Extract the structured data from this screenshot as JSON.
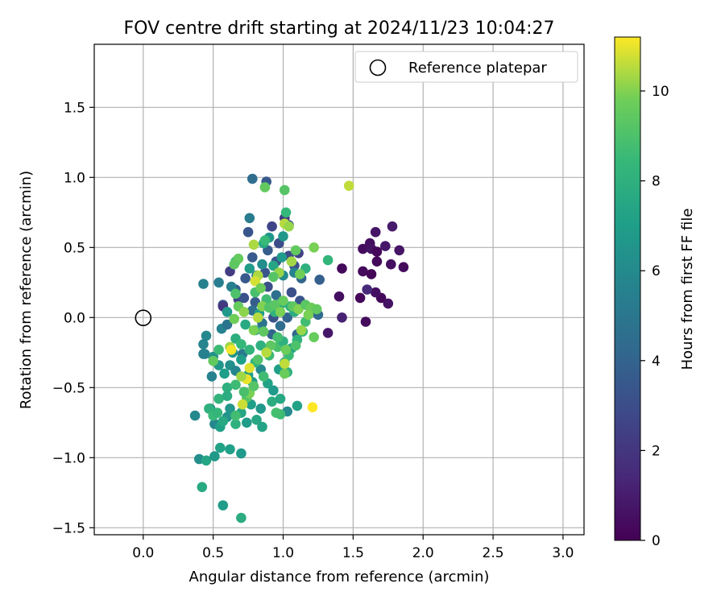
{
  "chart_data": {
    "type": "scatter",
    "title": "FOV centre drift starting at 2024/11/23 10:04:27",
    "xlabel": "Angular distance from reference (arcmin)",
    "ylabel": "Rotation from reference (arcmin)",
    "xlim": [
      -0.35,
      3.15
    ],
    "ylim": [
      -1.55,
      1.95
    ],
    "xticks": [
      0.0,
      0.5,
      1.0,
      1.5,
      2.0,
      2.5,
      3.0
    ],
    "xtick_labels": [
      "0.0",
      "0.5",
      "1.0",
      "1.5",
      "2.0",
      "2.5",
      "3.0"
    ],
    "yticks": [
      -1.5,
      -1.0,
      -0.5,
      0.0,
      0.5,
      1.0,
      1.5
    ],
    "ytick_labels": [
      "−1.5",
      "−1.0",
      "−0.5",
      "0.0",
      "0.5",
      "1.0",
      "1.5"
    ],
    "grid": true,
    "legend": {
      "position": "top-right",
      "entries": [
        "Reference platepar"
      ]
    },
    "reference_point": {
      "x": 0.0,
      "y": 0.0,
      "label": "Reference platepar"
    },
    "colorbar": {
      "label": "Hours from first FF file",
      "colormap": "viridis",
      "range": [
        0,
        11.2
      ],
      "ticks": [
        0,
        2,
        4,
        6,
        8,
        10
      ],
      "tick_labels": [
        "0",
        "2",
        "4",
        "6",
        "8",
        "10"
      ]
    },
    "points": [
      {
        "x": 1.42,
        "y": 0.35,
        "h": 0.3
      },
      {
        "x": 1.4,
        "y": 0.15,
        "h": 0.5
      },
      {
        "x": 1.42,
        "y": 0.0,
        "h": 1.2
      },
      {
        "x": 1.32,
        "y": -0.11,
        "h": 0.8
      },
      {
        "x": 1.55,
        "y": 0.14,
        "h": 0.2
      },
      {
        "x": 1.57,
        "y": 0.33,
        "h": 0.3
      },
      {
        "x": 1.57,
        "y": 0.49,
        "h": 0.4
      },
      {
        "x": 1.59,
        "y": -0.03,
        "h": 0.4
      },
      {
        "x": 1.62,
        "y": 0.53,
        "h": 0.5
      },
      {
        "x": 1.63,
        "y": 0.31,
        "h": 0.1
      },
      {
        "x": 1.63,
        "y": 0.49,
        "h": 0.6
      },
      {
        "x": 1.66,
        "y": 0.61,
        "h": 0.7
      },
      {
        "x": 1.67,
        "y": 0.4,
        "h": 0.3
      },
      {
        "x": 1.67,
        "y": 0.47,
        "h": 0.2
      },
      {
        "x": 1.7,
        "y": 0.14,
        "h": 0.2
      },
      {
        "x": 1.73,
        "y": 0.51,
        "h": 0.8
      },
      {
        "x": 1.75,
        "y": 0.1,
        "h": 0.6
      },
      {
        "x": 1.77,
        "y": 0.38,
        "h": 0.5
      },
      {
        "x": 1.78,
        "y": 0.65,
        "h": 0.9
      },
      {
        "x": 1.83,
        "y": 0.48,
        "h": 0.7
      },
      {
        "x": 1.86,
        "y": 0.36,
        "h": 0.4
      },
      {
        "x": 1.66,
        "y": 0.18,
        "h": 0.5
      },
      {
        "x": 1.6,
        "y": 0.2,
        "h": 1.5
      },
      {
        "x": 0.78,
        "y": 0.99,
        "h": 4.5
      },
      {
        "x": 0.88,
        "y": 0.97,
        "h": 3.5
      },
      {
        "x": 0.76,
        "y": 0.71,
        "h": 5.3
      },
      {
        "x": 0.75,
        "y": 0.61,
        "h": 3.4
      },
      {
        "x": 0.92,
        "y": 0.65,
        "h": 2.6
      },
      {
        "x": 0.97,
        "y": 0.53,
        "h": 3.0
      },
      {
        "x": 1.01,
        "y": 0.71,
        "h": 2.2
      },
      {
        "x": 1.04,
        "y": 0.66,
        "h": 3.0
      },
      {
        "x": 1.04,
        "y": 0.44,
        "h": 2.9
      },
      {
        "x": 1.08,
        "y": 0.37,
        "h": 3.1
      },
      {
        "x": 1.11,
        "y": 0.46,
        "h": 2.5
      },
      {
        "x": 0.95,
        "y": 0.4,
        "h": 3.3
      },
      {
        "x": 0.89,
        "y": 0.48,
        "h": 3.7
      },
      {
        "x": 0.87,
        "y": 0.32,
        "h": 3.3
      },
      {
        "x": 0.78,
        "y": 0.43,
        "h": 3.6
      },
      {
        "x": 0.73,
        "y": 0.28,
        "h": 3.5
      },
      {
        "x": 0.62,
        "y": 0.33,
        "h": 2.3
      },
      {
        "x": 0.66,
        "y": 0.2,
        "h": 3.8
      },
      {
        "x": 0.68,
        "y": 0.13,
        "h": 2.5
      },
      {
        "x": 0.57,
        "y": 0.09,
        "h": 3.4
      },
      {
        "x": 0.57,
        "y": 0.08,
        "h": 2.0
      },
      {
        "x": 0.72,
        "y": 0.14,
        "h": 3.2
      },
      {
        "x": 0.8,
        "y": 0.11,
        "h": 3.7
      },
      {
        "x": 0.78,
        "y": 0.05,
        "h": 4.6
      },
      {
        "x": 0.85,
        "y": -0.04,
        "h": 4.8
      },
      {
        "x": 0.93,
        "y": 0.0,
        "h": 3.2
      },
      {
        "x": 0.98,
        "y": -0.06,
        "h": 4.5
      },
      {
        "x": 1.03,
        "y": 0.0,
        "h": 4.0
      },
      {
        "x": 1.06,
        "y": 0.18,
        "h": 3.1
      },
      {
        "x": 1.12,
        "y": 0.12,
        "h": 3.3
      },
      {
        "x": 1.2,
        "y": 0.04,
        "h": 3.3
      },
      {
        "x": 1.26,
        "y": 0.27,
        "h": 3.8
      },
      {
        "x": 1.13,
        "y": 0.28,
        "h": 4.1
      },
      {
        "x": 1.25,
        "y": 0.02,
        "h": 4.3
      },
      {
        "x": 1.1,
        "y": -0.12,
        "h": 4.2
      },
      {
        "x": 0.92,
        "y": -0.12,
        "h": 4.0
      },
      {
        "x": 0.89,
        "y": 0.22,
        "h": 3.1
      },
      {
        "x": 0.95,
        "y": 0.16,
        "h": 4.6
      },
      {
        "x": 0.81,
        "y": 0.3,
        "h": 5.3
      },
      {
        "x": 0.76,
        "y": 0.35,
        "h": 6.9
      },
      {
        "x": 0.86,
        "y": 0.53,
        "h": 7.6
      },
      {
        "x": 0.9,
        "y": 0.57,
        "h": 6.6
      },
      {
        "x": 1.0,
        "y": 0.58,
        "h": 6.7
      },
      {
        "x": 0.99,
        "y": 0.43,
        "h": 6.8
      },
      {
        "x": 1.08,
        "y": 0.32,
        "h": 5.6
      },
      {
        "x": 1.0,
        "y": 0.3,
        "h": 6.0
      },
      {
        "x": 0.93,
        "y": 0.37,
        "h": 7.4
      },
      {
        "x": 0.85,
        "y": 0.38,
        "h": 6.2
      },
      {
        "x": 0.66,
        "y": 0.4,
        "h": 8.7
      },
      {
        "x": 0.63,
        "y": 0.22,
        "h": 5.5
      },
      {
        "x": 0.6,
        "y": 0.04,
        "h": 6.7
      },
      {
        "x": 0.56,
        "y": -0.08,
        "h": 5.6
      },
      {
        "x": 0.6,
        "y": -0.05,
        "h": 4.8
      },
      {
        "x": 0.45,
        "y": -0.13,
        "h": 5.9
      },
      {
        "x": 0.44,
        "y": -0.26,
        "h": 5.2
      },
      {
        "x": 0.5,
        "y": -0.28,
        "h": 6.3
      },
      {
        "x": 0.49,
        "y": -0.42,
        "h": 5.6
      },
      {
        "x": 0.54,
        "y": -0.34,
        "h": 6.6
      },
      {
        "x": 0.58,
        "y": -0.4,
        "h": 7.0
      },
      {
        "x": 0.62,
        "y": -0.34,
        "h": 6.3
      },
      {
        "x": 0.66,
        "y": -0.38,
        "h": 5.8
      },
      {
        "x": 0.71,
        "y": -0.26,
        "h": 5.1
      },
      {
        "x": 0.7,
        "y": -0.3,
        "h": 7.0
      },
      {
        "x": 0.64,
        "y": -0.25,
        "h": 6.5
      },
      {
        "x": 0.75,
        "y": -0.41,
        "h": 7.0
      },
      {
        "x": 0.78,
        "y": -0.46,
        "h": 6.8
      },
      {
        "x": 0.84,
        "y": -0.37,
        "h": 6.0
      },
      {
        "x": 0.8,
        "y": -0.32,
        "h": 8.1
      },
      {
        "x": 0.89,
        "y": -0.47,
        "h": 7.2
      },
      {
        "x": 0.93,
        "y": -0.52,
        "h": 6.8
      },
      {
        "x": 0.97,
        "y": -0.37,
        "h": 7.0
      },
      {
        "x": 1.01,
        "y": -0.32,
        "h": 7.5
      },
      {
        "x": 1.03,
        "y": -0.39,
        "h": 8.0
      },
      {
        "x": 1.06,
        "y": -0.22,
        "h": 7.3
      },
      {
        "x": 1.1,
        "y": -0.16,
        "h": 8.1
      },
      {
        "x": 1.14,
        "y": -0.1,
        "h": 8.3
      },
      {
        "x": 1.16,
        "y": -0.03,
        "h": 8.7
      },
      {
        "x": 1.08,
        "y": 0.04,
        "h": 7.8
      },
      {
        "x": 1.05,
        "y": 0.08,
        "h": 8.2
      },
      {
        "x": 0.99,
        "y": 0.1,
        "h": 7.9
      },
      {
        "x": 0.94,
        "y": 0.04,
        "h": 8.1
      },
      {
        "x": 0.88,
        "y": 0.11,
        "h": 7.2
      },
      {
        "x": 0.83,
        "y": 0.03,
        "h": 7.0
      },
      {
        "x": 0.8,
        "y": -0.09,
        "h": 6.6
      },
      {
        "x": 0.73,
        "y": -0.05,
        "h": 7.6
      },
      {
        "x": 0.66,
        "y": -0.15,
        "h": 7.9
      },
      {
        "x": 0.7,
        "y": -0.19,
        "h": 8.4
      },
      {
        "x": 0.76,
        "y": -0.23,
        "h": 8.2
      },
      {
        "x": 0.84,
        "y": -0.2,
        "h": 8.0
      },
      {
        "x": 0.9,
        "y": -0.27,
        "h": 8.6
      },
      {
        "x": 0.96,
        "y": -0.21,
        "h": 8.9
      },
      {
        "x": 1.0,
        "y": -0.17,
        "h": 8.0
      },
      {
        "x": 1.04,
        "y": -0.27,
        "h": 8.6
      },
      {
        "x": 0.43,
        "y": -0.26,
        "h": 5.5
      },
      {
        "x": 0.43,
        "y": -0.19,
        "h": 5.7
      },
      {
        "x": 0.43,
        "y": 0.24,
        "h": 5.5
      },
      {
        "x": 0.54,
        "y": 0.25,
        "h": 5.4
      },
      {
        "x": 0.37,
        "y": -0.7,
        "h": 5.9
      },
      {
        "x": 0.48,
        "y": -0.65,
        "h": 6.2
      },
      {
        "x": 0.51,
        "y": -0.76,
        "h": 5.8
      },
      {
        "x": 0.55,
        "y": -0.78,
        "h": 7.1
      },
      {
        "x": 0.6,
        "y": -0.71,
        "h": 6.5
      },
      {
        "x": 0.62,
        "y": -0.65,
        "h": 6.6
      },
      {
        "x": 0.66,
        "y": -0.76,
        "h": 8.0
      },
      {
        "x": 0.7,
        "y": -0.68,
        "h": 7.4
      },
      {
        "x": 0.74,
        "y": -0.75,
        "h": 6.9
      },
      {
        "x": 0.77,
        "y": -0.62,
        "h": 7.0
      },
      {
        "x": 0.81,
        "y": -0.73,
        "h": 7.5
      },
      {
        "x": 0.84,
        "y": -0.65,
        "h": 6.7
      },
      {
        "x": 0.85,
        "y": -0.78,
        "h": 7.3
      },
      {
        "x": 0.92,
        "y": -0.6,
        "h": 7.8
      },
      {
        "x": 0.98,
        "y": -0.58,
        "h": 7.5
      },
      {
        "x": 1.03,
        "y": -0.67,
        "h": 6.0
      },
      {
        "x": 1.1,
        "y": -0.63,
        "h": 7.2
      },
      {
        "x": 0.98,
        "y": -0.69,
        "h": 8.6
      },
      {
        "x": 0.4,
        "y": -1.01,
        "h": 6.2
      },
      {
        "x": 0.45,
        "y": -1.02,
        "h": 7.4
      },
      {
        "x": 0.51,
        "y": -0.99,
        "h": 6.7
      },
      {
        "x": 0.55,
        "y": -0.93,
        "h": 7.2
      },
      {
        "x": 0.62,
        "y": -0.94,
        "h": 7.1
      },
      {
        "x": 0.7,
        "y": -0.97,
        "h": 6.8
      },
      {
        "x": 0.42,
        "y": -1.21,
        "h": 7.6
      },
      {
        "x": 0.57,
        "y": -1.34,
        "h": 6.9
      },
      {
        "x": 0.7,
        "y": -1.43,
        "h": 7.8
      },
      {
        "x": 0.87,
        "y": 0.93,
        "h": 9.5
      },
      {
        "x": 1.01,
        "y": 0.91,
        "h": 9.2
      },
      {
        "x": 1.02,
        "y": 0.75,
        "h": 8.4
      },
      {
        "x": 1.01,
        "y": 0.67,
        "h": 10.5
      },
      {
        "x": 1.04,
        "y": 0.65,
        "h": 10.2
      },
      {
        "x": 1.47,
        "y": 0.94,
        "h": 10.6
      },
      {
        "x": 0.79,
        "y": 0.52,
        "h": 10.4
      },
      {
        "x": 0.87,
        "y": 0.55,
        "h": 8.5
      },
      {
        "x": 1.09,
        "y": 0.48,
        "h": 9.5
      },
      {
        "x": 1.22,
        "y": 0.5,
        "h": 9.9
      },
      {
        "x": 1.32,
        "y": 0.41,
        "h": 8.3
      },
      {
        "x": 1.16,
        "y": 0.35,
        "h": 8.0
      },
      {
        "x": 1.12,
        "y": 0.31,
        "h": 9.8
      },
      {
        "x": 1.06,
        "y": 0.4,
        "h": 10.3
      },
      {
        "x": 0.97,
        "y": 0.32,
        "h": 10.2
      },
      {
        "x": 0.93,
        "y": 0.29,
        "h": 9.2
      },
      {
        "x": 0.82,
        "y": 0.3,
        "h": 10.4
      },
      {
        "x": 0.8,
        "y": 0.26,
        "h": 10.8
      },
      {
        "x": 0.68,
        "y": 0.42,
        "h": 9.6
      },
      {
        "x": 0.65,
        "y": 0.38,
        "h": 9.4
      },
      {
        "x": 0.66,
        "y": 0.17,
        "h": 9.0
      },
      {
        "x": 0.68,
        "y": 0.08,
        "h": 9.6
      },
      {
        "x": 0.65,
        "y": -0.01,
        "h": 9.8
      },
      {
        "x": 0.72,
        "y": 0.04,
        "h": 10.1
      },
      {
        "x": 0.8,
        "y": 0.18,
        "h": 8.9
      },
      {
        "x": 0.84,
        "y": 0.21,
        "h": 9.7
      },
      {
        "x": 0.88,
        "y": 0.13,
        "h": 8.7
      },
      {
        "x": 0.85,
        "y": 0.08,
        "h": 10.0
      },
      {
        "x": 0.82,
        "y": 0.0,
        "h": 10.5
      },
      {
        "x": 0.79,
        "y": -0.09,
        "h": 9.9
      },
      {
        "x": 0.86,
        "y": -0.1,
        "h": 9.4
      },
      {
        "x": 0.9,
        "y": 0.07,
        "h": 9.1
      },
      {
        "x": 0.94,
        "y": 0.09,
        "h": 9.3
      },
      {
        "x": 0.98,
        "y": 0.04,
        "h": 9.9
      },
      {
        "x": 1.0,
        "y": 0.12,
        "h": 9.6
      },
      {
        "x": 1.07,
        "y": 0.08,
        "h": 9.4
      },
      {
        "x": 1.11,
        "y": 0.06,
        "h": 10.0
      },
      {
        "x": 1.16,
        "y": 0.09,
        "h": 9.3
      },
      {
        "x": 1.2,
        "y": 0.07,
        "h": 9.7
      },
      {
        "x": 1.24,
        "y": 0.06,
        "h": 9.5
      },
      {
        "x": 1.18,
        "y": 0.02,
        "h": 9.9
      },
      {
        "x": 1.13,
        "y": -0.09,
        "h": 10.2
      },
      {
        "x": 1.22,
        "y": -0.14,
        "h": 9.6
      },
      {
        "x": 1.09,
        "y": -0.2,
        "h": 9.0
      },
      {
        "x": 1.02,
        "y": -0.23,
        "h": 9.7
      },
      {
        "x": 0.96,
        "y": -0.14,
        "h": 8.8
      },
      {
        "x": 0.91,
        "y": -0.2,
        "h": 9.4
      },
      {
        "x": 0.88,
        "y": -0.25,
        "h": 10.5
      },
      {
        "x": 0.82,
        "y": -0.3,
        "h": 9.1
      },
      {
        "x": 0.76,
        "y": -0.36,
        "h": 10.9
      },
      {
        "x": 0.74,
        "y": -0.44,
        "h": 11.0
      },
      {
        "x": 0.7,
        "y": -0.42,
        "h": 10.3
      },
      {
        "x": 0.74,
        "y": -0.57,
        "h": 9.2
      },
      {
        "x": 0.71,
        "y": -0.62,
        "h": 10.7
      },
      {
        "x": 0.76,
        "y": -0.54,
        "h": 9.9
      },
      {
        "x": 0.62,
        "y": -0.21,
        "h": 10.3
      },
      {
        "x": 0.63,
        "y": -0.23,
        "h": 11.1
      },
      {
        "x": 0.5,
        "y": -0.31,
        "h": 9.5
      },
      {
        "x": 0.54,
        "y": -0.23,
        "h": 8.6
      },
      {
        "x": 0.54,
        "y": -0.58,
        "h": 8.2
      },
      {
        "x": 0.6,
        "y": -0.5,
        "h": 8.0
      },
      {
        "x": 0.66,
        "y": -0.48,
        "h": 8.6
      },
      {
        "x": 0.72,
        "y": -0.53,
        "h": 8.9
      },
      {
        "x": 0.79,
        "y": -0.49,
        "h": 9.2
      },
      {
        "x": 0.86,
        "y": -0.42,
        "h": 8.7
      },
      {
        "x": 1.01,
        "y": -0.4,
        "h": 9.7
      },
      {
        "x": 1.01,
        "y": -0.33,
        "h": 10.6
      },
      {
        "x": 0.95,
        "y": -0.68,
        "h": 8.8
      },
      {
        "x": 1.21,
        "y": -0.64,
        "h": 11.2
      },
      {
        "x": 0.47,
        "y": -0.65,
        "h": 8.0
      },
      {
        "x": 0.5,
        "y": -0.7,
        "h": 8.5
      },
      {
        "x": 0.53,
        "y": -0.68,
        "h": 8.3
      },
      {
        "x": 0.57,
        "y": -0.74,
        "h": 7.6
      },
      {
        "x": 0.66,
        "y": -0.7,
        "h": 8.7
      },
      {
        "x": 0.6,
        "y": -0.56,
        "h": 7.8
      }
    ]
  }
}
